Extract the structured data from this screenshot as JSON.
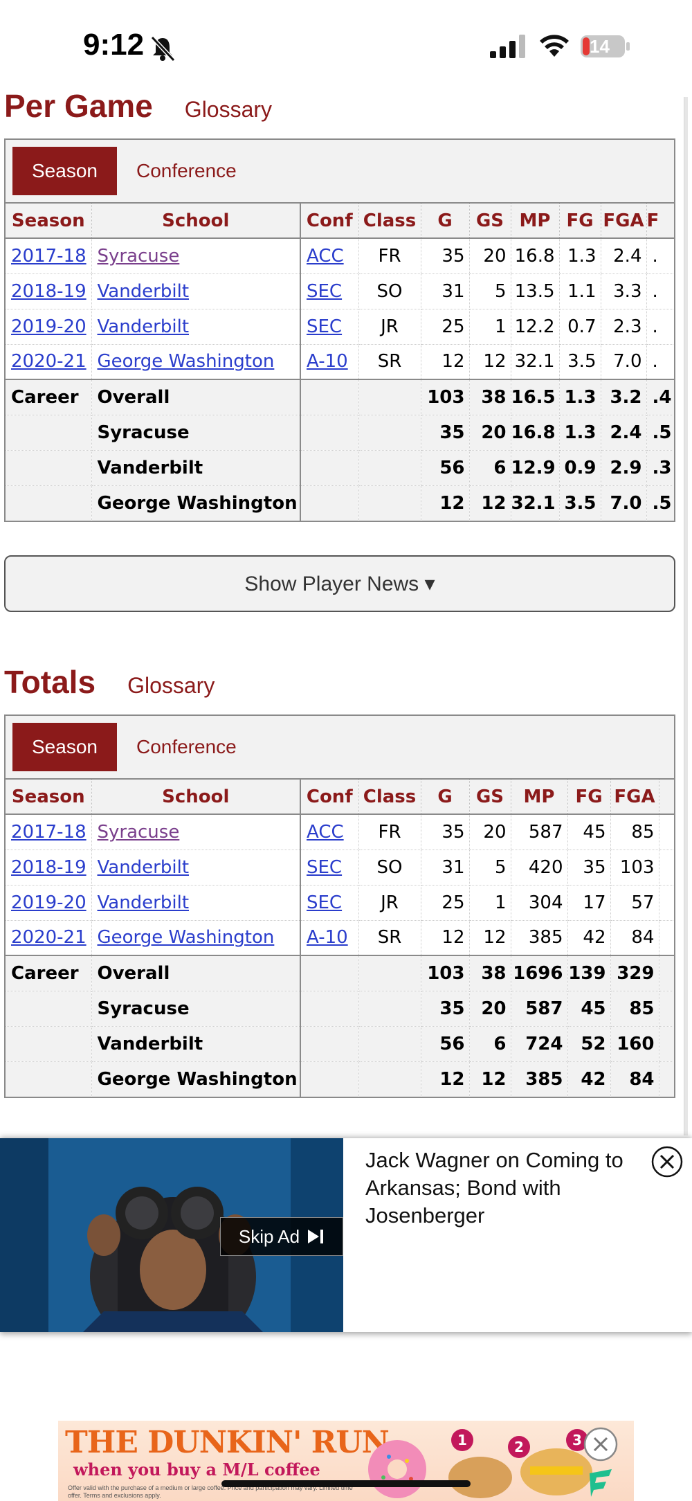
{
  "status_bar": {
    "time": "9:12",
    "battery": "14"
  },
  "per_game": {
    "title": "Per Game",
    "glossary": "Glossary",
    "tabs": [
      "Season",
      "Conference"
    ],
    "columns": [
      "Season",
      "School",
      "Conf",
      "Class",
      "G",
      "GS",
      "MP",
      "FG",
      "FGA",
      "F"
    ],
    "rows": [
      {
        "season": "2017-18",
        "school": "Syracuse",
        "conf": "ACC",
        "class": "FR",
        "g": "35",
        "gs": "20",
        "mp": "16.8",
        "fg": "1.3",
        "fga": "2.4",
        "extra": "."
      },
      {
        "season": "2018-19",
        "school": "Vanderbilt",
        "conf": "SEC",
        "class": "SO",
        "g": "31",
        "gs": "5",
        "mp": "13.5",
        "fg": "1.1",
        "fga": "3.3",
        "extra": "."
      },
      {
        "season": "2019-20",
        "school": "Vanderbilt",
        "conf": "SEC",
        "class": "JR",
        "g": "25",
        "gs": "1",
        "mp": "12.2",
        "fg": "0.7",
        "fga": "2.3",
        "extra": "."
      },
      {
        "season": "2020-21",
        "school": "George Washington",
        "conf": "A-10",
        "class": "SR",
        "g": "12",
        "gs": "12",
        "mp": "32.1",
        "fg": "3.5",
        "fga": "7.0",
        "extra": "."
      }
    ],
    "career": [
      {
        "label": "Career",
        "school": "Overall",
        "g": "103",
        "gs": "38",
        "mp": "16.5",
        "fg": "1.3",
        "fga": "3.2",
        "extra": ".4"
      },
      {
        "label": "",
        "school": "Syracuse",
        "g": "35",
        "gs": "20",
        "mp": "16.8",
        "fg": "1.3",
        "fga": "2.4",
        "extra": ".5"
      },
      {
        "label": "",
        "school": "Vanderbilt",
        "g": "56",
        "gs": "6",
        "mp": "12.9",
        "fg": "0.9",
        "fga": "2.9",
        "extra": ".3"
      },
      {
        "label": "",
        "school": "George Washington",
        "g": "12",
        "gs": "12",
        "mp": "32.1",
        "fg": "3.5",
        "fga": "7.0",
        "extra": ".5"
      }
    ]
  },
  "news_button": "Show Player News ▾",
  "totals": {
    "title": "Totals",
    "glossary": "Glossary",
    "tabs": [
      "Season",
      "Conference"
    ],
    "columns": [
      "Season",
      "School",
      "Conf",
      "Class",
      "G",
      "GS",
      "MP",
      "FG",
      "FGA"
    ],
    "rows": [
      {
        "season": "2017-18",
        "school": "Syracuse",
        "conf": "ACC",
        "class": "FR",
        "g": "35",
        "gs": "20",
        "mp": "587",
        "fg": "45",
        "fga": "85"
      },
      {
        "season": "2018-19",
        "school": "Vanderbilt",
        "conf": "SEC",
        "class": "SO",
        "g": "31",
        "gs": "5",
        "mp": "420",
        "fg": "35",
        "fga": "103"
      },
      {
        "season": "2019-20",
        "school": "Vanderbilt",
        "conf": "SEC",
        "class": "JR",
        "g": "25",
        "gs": "1",
        "mp": "304",
        "fg": "17",
        "fga": "57"
      },
      {
        "season": "2020-21",
        "school": "George Washington",
        "conf": "A-10",
        "class": "SR",
        "g": "12",
        "gs": "12",
        "mp": "385",
        "fg": "42",
        "fga": "84"
      }
    ],
    "career": [
      {
        "label": "Career",
        "school": "Overall",
        "g": "103",
        "gs": "38",
        "mp": "1696",
        "fg": "139",
        "fga": "329"
      },
      {
        "label": "",
        "school": "Syracuse",
        "g": "35",
        "gs": "20",
        "mp": "587",
        "fg": "45",
        "fga": "85"
      },
      {
        "label": "",
        "school": "Vanderbilt",
        "g": "56",
        "gs": "6",
        "mp": "724",
        "fg": "52",
        "fga": "160"
      },
      {
        "label": "",
        "school": "George Washington",
        "g": "12",
        "gs": "12",
        "mp": "385",
        "fg": "42",
        "fga": "84"
      }
    ]
  },
  "video_ad": {
    "skip_label": "Skip Ad",
    "headline": "Jack Wagner on Coming to Arkansas; Bond with Josenberger"
  },
  "banner_ad": {
    "title": "THE DUNKIN' RUN",
    "subtitle": "when you buy a M/L coffee",
    "fine_print": "Offer valid with the purchase of a medium or large coffee. Price and participation may vary. Limited time offer. Terms and exclusions apply.",
    "badges": [
      "1",
      "2",
      "3"
    ]
  },
  "colors": {
    "brand": "#8b1a1a",
    "link": "#2a3dcc",
    "visited": "#7a3f8c",
    "header_bg": "#f2f2f2"
  }
}
